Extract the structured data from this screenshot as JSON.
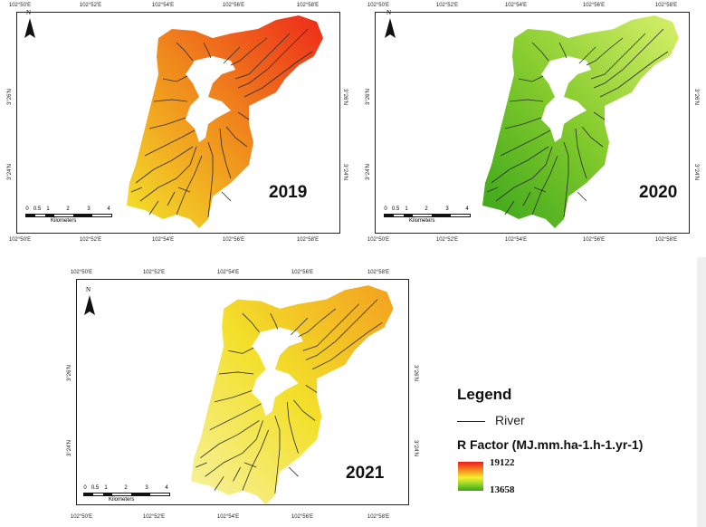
{
  "legend": {
    "title": "Legend",
    "river_label": "River",
    "rfactor_label": "R Factor (MJ.mm.ha-1.h-1.yr-1)",
    "max_value": "19122",
    "min_value": "13658",
    "ramp_colors": [
      "#ee1c1c",
      "#f4a21e",
      "#f6f02a",
      "#9bd82a",
      "#3aa51a"
    ]
  },
  "graticule": {
    "x_labels": [
      "102°50'E",
      "102°52'E",
      "102°54'E",
      "102°56'E",
      "102°58'E"
    ],
    "y_labels": [
      "3°26'N",
      "3°24'N"
    ]
  },
  "scale_bar": {
    "numbers": [
      "0",
      "0.5",
      "1",
      "2",
      "3",
      "4"
    ],
    "unit": "Kilometers"
  },
  "north_label": "N",
  "maps": [
    {
      "year": "2019",
      "colors": {
        "top": "#ee2a1a",
        "mid": "#f08a1c",
        "bottom": "#f4e42a"
      }
    },
    {
      "year": "2020",
      "colors": {
        "top": "#d8f06a",
        "mid": "#86cc2e",
        "bottom": "#3aa51a"
      }
    },
    {
      "year": "2021",
      "colors": {
        "top": "#f3a020",
        "mid": "#f3e02a",
        "bottom": "#f7f2a0"
      }
    }
  ]
}
